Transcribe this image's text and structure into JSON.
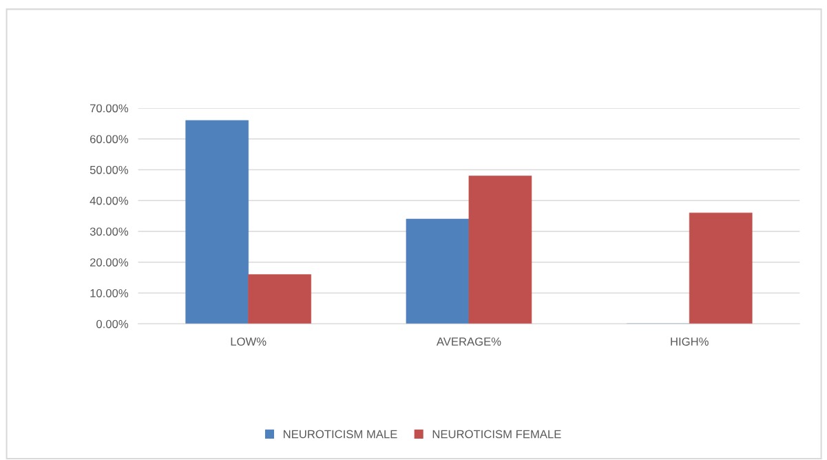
{
  "chart_data": {
    "type": "bar",
    "categories": [
      "LOW%",
      "AVERAGE%",
      "HIGH%"
    ],
    "series": [
      {
        "name": "NEUROTICISM MALE",
        "color": "#4f81bd",
        "values": [
          66,
          34,
          0
        ]
      },
      {
        "name": "NEUROTICISM FEMALE",
        "color": "#c0504d",
        "values": [
          16,
          48,
          36
        ]
      }
    ],
    "ylim": [
      0,
      70
    ],
    "yticks": [
      {
        "value": 0,
        "label": "0.00%"
      },
      {
        "value": 10,
        "label": "10.00%"
      },
      {
        "value": 20,
        "label": "20.00%"
      },
      {
        "value": 30,
        "label": "30.00%"
      },
      {
        "value": 40,
        "label": "40.00%"
      },
      {
        "value": 50,
        "label": "50.00%"
      },
      {
        "value": 60,
        "label": "60.00%"
      },
      {
        "value": 70,
        "label": "70.00%"
      }
    ],
    "grid": "y",
    "legend": "bottom"
  }
}
